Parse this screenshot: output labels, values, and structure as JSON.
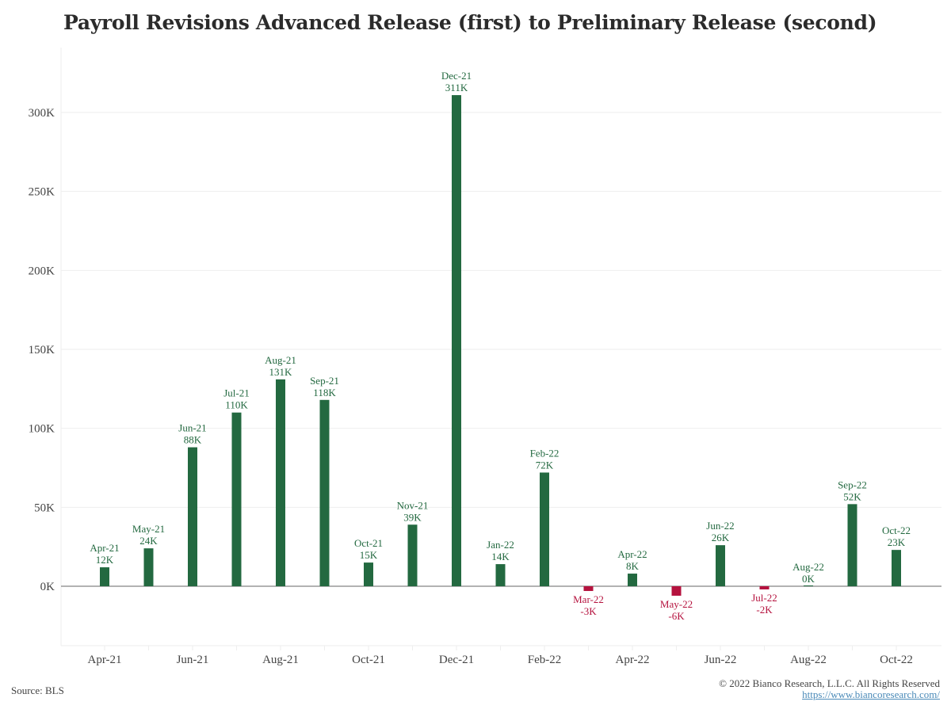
{
  "header": {
    "title": "Payroll Revisions Advanced Release (first) to Preliminary Release (second)"
  },
  "footer": {
    "source": "Source: BLS",
    "copyright": "© 2022 Bianco Research, L.L.C. All Rights Reserved",
    "url": "https://www.biancoresearch.com/"
  },
  "colors": {
    "positive": "#236940",
    "negative": "#b5123e",
    "zero_line": "#999999",
    "grid": "#eeeeee"
  },
  "chart_data": {
    "type": "bar",
    "title": "Payroll Revisions Advanced Release (first) to Preliminary Release (second)",
    "xlabel": "",
    "ylabel": "",
    "unit": "K",
    "categories": [
      "Apr-21",
      "May-21",
      "Jun-21",
      "Jul-21",
      "Aug-21",
      "Sep-21",
      "Oct-21",
      "Nov-21",
      "Dec-21",
      "Jan-22",
      "Feb-22",
      "Mar-22",
      "Apr-22",
      "May-22",
      "Jun-22",
      "Jul-22",
      "Aug-22",
      "Sep-22",
      "Oct-22"
    ],
    "values": [
      12,
      24,
      88,
      110,
      131,
      118,
      15,
      39,
      311,
      14,
      72,
      -3,
      8,
      -6,
      26,
      -2,
      0,
      52,
      23
    ],
    "data_labels": [
      "12K",
      "24K",
      "88K",
      "110K",
      "131K",
      "118K",
      "15K",
      "39K",
      "311K",
      "14K",
      "72K",
      "-3K",
      "8K",
      "-6K",
      "26K",
      "-2K",
      "0K",
      "52K",
      "23K"
    ],
    "ylim": [
      -37,
      342
    ],
    "yticks": [
      0,
      50,
      100,
      150,
      200,
      250,
      300
    ],
    "ytick_labels": [
      "0K",
      "50K",
      "100K",
      "150K",
      "200K",
      "250K",
      "300K"
    ],
    "xtick_labels": [
      "Apr-21",
      "Jun-21",
      "Aug-21",
      "Oct-21",
      "Dec-21",
      "Feb-22",
      "Apr-22",
      "Jun-22",
      "Aug-22",
      "Oct-22"
    ],
    "xtick_indices": [
      0,
      2,
      4,
      6,
      8,
      10,
      12,
      14,
      16,
      18
    ],
    "grid": true,
    "legend": "none"
  }
}
